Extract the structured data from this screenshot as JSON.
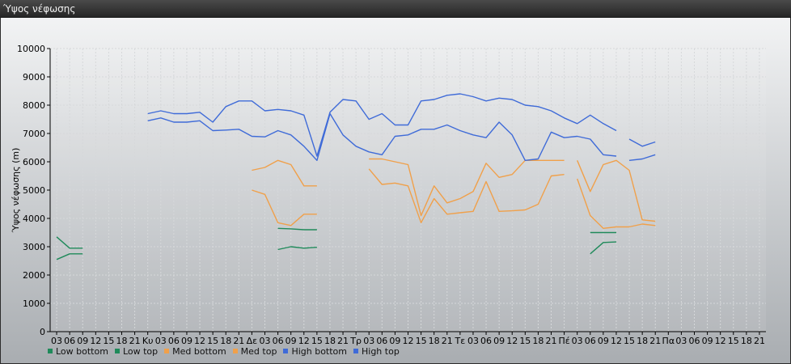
{
  "window": {
    "title": "Ύψος νέφωσης"
  },
  "colors": {
    "low": "#1f8a5a",
    "med": "#f0a04a",
    "high": "#3f6bd8"
  },
  "chart_data": {
    "type": "line",
    "title": "",
    "xlabel": "",
    "ylabel": "Ύψος νέφωσης (m)",
    "ylim": [
      0,
      10000
    ],
    "yticks": [
      0,
      1000,
      2000,
      3000,
      4000,
      5000,
      6000,
      7000,
      8000,
      9000,
      10000
    ],
    "grid": true,
    "legend_position": "bottom-left",
    "categories": [
      "03",
      "06",
      "09",
      "12",
      "15",
      "18",
      "21",
      "Κυ",
      "03",
      "06",
      "09",
      "12",
      "15",
      "18",
      "21",
      "Δε",
      "03",
      "06",
      "09",
      "12",
      "15",
      "18",
      "21",
      "Τρ",
      "03",
      "06",
      "09",
      "12",
      "15",
      "18",
      "21",
      "Τε",
      "03",
      "06",
      "09",
      "12",
      "15",
      "18",
      "21",
      "Πέ",
      "03",
      "06",
      "09",
      "12",
      "15",
      "18",
      "21",
      "Πα",
      "03",
      "06",
      "09",
      "12",
      "15",
      "18",
      "21"
    ],
    "series": [
      {
        "name": "Low bottom",
        "color_key": "low",
        "segments": [
          [
            [
              0,
              2550
            ],
            [
              1,
              2750
            ],
            [
              2,
              2750
            ]
          ],
          [
            [
              17,
              2900
            ],
            [
              18,
              3000
            ],
            [
              19,
              2950
            ],
            [
              20,
              2980
            ]
          ],
          [
            [
              41,
              2750
            ],
            [
              42,
              3150
            ],
            [
              43,
              3170
            ]
          ]
        ]
      },
      {
        "name": "Low top",
        "color_key": "low",
        "segments": [
          [
            [
              0,
              3350
            ],
            [
              1,
              2950
            ],
            [
              2,
              2950
            ]
          ],
          [
            [
              17,
              3650
            ],
            [
              18,
              3630
            ],
            [
              19,
              3600
            ],
            [
              20,
              3600
            ]
          ],
          [
            [
              41,
              3500
            ],
            [
              42,
              3500
            ],
            [
              43,
              3500
            ]
          ]
        ]
      },
      {
        "name": "Med bottom",
        "color_key": "med",
        "segments": [
          [
            [
              15,
              5000
            ],
            [
              16,
              4850
            ],
            [
              17,
              3850
            ],
            [
              18,
              3750
            ],
            [
              19,
              4150
            ],
            [
              20,
              4150
            ]
          ],
          [
            [
              24,
              5750
            ],
            [
              25,
              5200
            ],
            [
              26,
              5250
            ],
            [
              27,
              5150
            ],
            [
              28,
              3850
            ],
            [
              29,
              4700
            ],
            [
              30,
              4150
            ],
            [
              31,
              4200
            ],
            [
              32,
              4250
            ],
            [
              33,
              5300
            ],
            [
              34,
              4250
            ],
            [
              35,
              4270
            ],
            [
              36,
              4300
            ],
            [
              37,
              4500
            ],
            [
              38,
              5500
            ],
            [
              39,
              5550
            ]
          ],
          [
            [
              40,
              5400
            ],
            [
              41,
              4100
            ],
            [
              42,
              3650
            ],
            [
              43,
              3700
            ],
            [
              44,
              3700
            ],
            [
              45,
              3800
            ],
            [
              46,
              3750
            ]
          ]
        ]
      },
      {
        "name": "Med top",
        "color_key": "med",
        "segments": [
          [
            [
              15,
              5700
            ],
            [
              16,
              5800
            ],
            [
              17,
              6050
            ],
            [
              18,
              5900
            ],
            [
              19,
              5150
            ],
            [
              20,
              5150
            ]
          ],
          [
            [
              24,
              6100
            ],
            [
              25,
              6100
            ],
            [
              26,
              6000
            ],
            [
              27,
              5900
            ],
            [
              28,
              4100
            ],
            [
              29,
              5150
            ],
            [
              30,
              4550
            ],
            [
              31,
              4700
            ],
            [
              32,
              4950
            ],
            [
              33,
              5950
            ],
            [
              34,
              5450
            ],
            [
              35,
              5550
            ],
            [
              36,
              6050
            ],
            [
              37,
              6050
            ],
            [
              38,
              6050
            ],
            [
              39,
              6050
            ]
          ],
          [
            [
              40,
              6050
            ],
            [
              41,
              4950
            ],
            [
              42,
              5900
            ],
            [
              43,
              6050
            ],
            [
              44,
              5700
            ],
            [
              45,
              3950
            ],
            [
              46,
              3900
            ]
          ]
        ]
      },
      {
        "name": "High bottom",
        "color_key": "high",
        "segments": [
          [
            [
              7,
              7450
            ],
            [
              8,
              7550
            ],
            [
              9,
              7400
            ],
            [
              10,
              7400
            ],
            [
              11,
              7450
            ],
            [
              12,
              7100
            ],
            [
              13,
              7120
            ],
            [
              14,
              7150
            ],
            [
              15,
              6900
            ],
            [
              16,
              6880
            ],
            [
              17,
              7100
            ],
            [
              18,
              6950
            ],
            [
              19,
              6550
            ],
            [
              20,
              6050
            ],
            [
              21,
              7700
            ],
            [
              22,
              6950
            ],
            [
              23,
              6550
            ],
            [
              24,
              6350
            ],
            [
              25,
              6250
            ],
            [
              26,
              6900
            ],
            [
              27,
              6950
            ],
            [
              28,
              7150
            ],
            [
              29,
              7150
            ],
            [
              30,
              7300
            ],
            [
              31,
              7100
            ],
            [
              32,
              6950
            ],
            [
              33,
              6850
            ],
            [
              34,
              7400
            ],
            [
              35,
              6950
            ],
            [
              36,
              6050
            ],
            [
              37,
              6100
            ],
            [
              38,
              7050
            ],
            [
              39,
              6850
            ],
            [
              40,
              6900
            ],
            [
              41,
              6800
            ],
            [
              42,
              6250
            ],
            [
              43,
              6200
            ]
          ],
          [
            [
              44,
              6050
            ],
            [
              45,
              6100
            ],
            [
              46,
              6250
            ]
          ]
        ]
      },
      {
        "name": "High top",
        "color_key": "high",
        "segments": [
          [
            [
              7,
              7700
            ],
            [
              8,
              7800
            ],
            [
              9,
              7700
            ],
            [
              10,
              7700
            ],
            [
              11,
              7750
            ],
            [
              12,
              7400
            ],
            [
              13,
              7950
            ],
            [
              14,
              8150
            ],
            [
              15,
              8150
            ],
            [
              16,
              7800
            ],
            [
              17,
              7850
            ],
            [
              18,
              7800
            ],
            [
              19,
              7650
            ],
            [
              20,
              6200
            ],
            [
              21,
              7750
            ],
            [
              22,
              8200
            ],
            [
              23,
              8150
            ],
            [
              24,
              7500
            ],
            [
              25,
              7700
            ],
            [
              26,
              7300
            ],
            [
              27,
              7300
            ],
            [
              28,
              8150
            ],
            [
              29,
              8200
            ],
            [
              30,
              8350
            ],
            [
              31,
              8400
            ],
            [
              32,
              8300
            ],
            [
              33,
              8150
            ],
            [
              34,
              8250
            ],
            [
              35,
              8200
            ],
            [
              36,
              8000
            ],
            [
              37,
              7950
            ],
            [
              38,
              7800
            ],
            [
              39,
              7550
            ],
            [
              40,
              7350
            ],
            [
              41,
              7650
            ],
            [
              42,
              7350
            ],
            [
              43,
              7100
            ]
          ],
          [
            [
              44,
              6800
            ],
            [
              45,
              6550
            ],
            [
              46,
              6700
            ]
          ]
        ]
      }
    ]
  }
}
